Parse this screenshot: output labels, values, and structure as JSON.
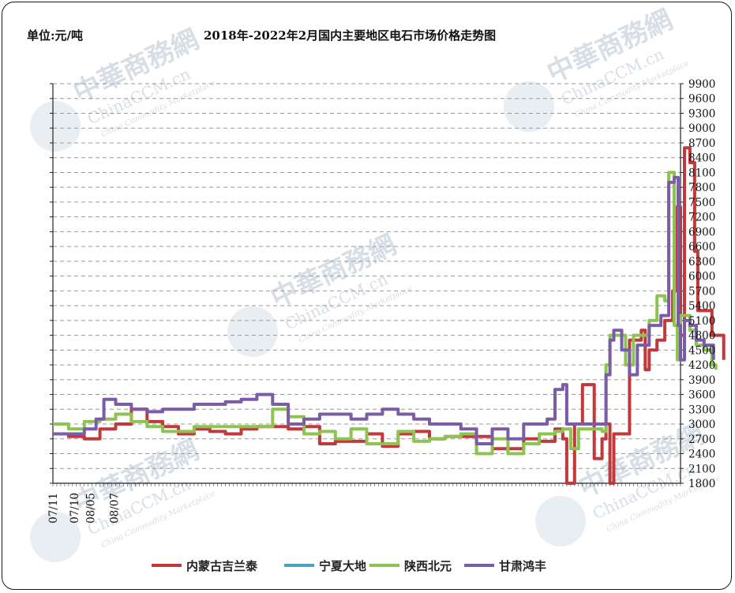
{
  "unit_label": "单位:元/吨",
  "watermark": {
    "brand_cn": "中華商務網",
    "brand_en": "ChinaCCM.cn",
    "tagline": "China Commodity Marketplace",
    "icon": "globe-icon"
  },
  "chart_data": {
    "type": "line",
    "title": "2018年-2022年2月国内主要地区电石市场价格走势图",
    "xlabel": "",
    "ylabel": "",
    "y_axis_side": "right",
    "ylim": [
      1800,
      9900
    ],
    "yticks": [
      1800,
      2100,
      2400,
      2700,
      3000,
      3300,
      3600,
      3900,
      4200,
      4500,
      4800,
      5100,
      5400,
      5700,
      6000,
      6300,
      6600,
      6900,
      7200,
      7500,
      7800,
      8100,
      8400,
      8700,
      9000,
      9300,
      9600,
      9900
    ],
    "x_tick_labels": [
      "07/11",
      "07/10",
      "08/05",
      "08/07"
    ],
    "x_tick_positions": [
      0,
      27,
      48,
      78
    ],
    "x_count": 800,
    "grid": "horizontal dashed",
    "legend_position": "bottom",
    "series": [
      {
        "name": "内蒙古吉兰泰",
        "color": "#c0393b",
        "points": [
          [
            0,
            2800
          ],
          [
            20,
            2750
          ],
          [
            40,
            2700
          ],
          [
            60,
            2900
          ],
          [
            80,
            3000
          ],
          [
            100,
            3300
          ],
          [
            120,
            3050
          ],
          [
            140,
            2950
          ],
          [
            160,
            2800
          ],
          [
            180,
            2900
          ],
          [
            200,
            2850
          ],
          [
            220,
            2800
          ],
          [
            240,
            2900
          ],
          [
            260,
            2950
          ],
          [
            280,
            2950
          ],
          [
            300,
            2900
          ],
          [
            320,
            2950
          ],
          [
            340,
            2600
          ],
          [
            360,
            2650
          ],
          [
            380,
            2650
          ],
          [
            400,
            2800
          ],
          [
            420,
            2550
          ],
          [
            440,
            2800
          ],
          [
            460,
            2850
          ],
          [
            480,
            2700
          ],
          [
            500,
            2750
          ],
          [
            520,
            2750
          ],
          [
            540,
            2750
          ],
          [
            560,
            2500
          ],
          [
            580,
            2500
          ],
          [
            600,
            2700
          ],
          [
            620,
            2650
          ],
          [
            640,
            2900
          ],
          [
            650,
            2700
          ],
          [
            655,
            1800
          ],
          [
            665,
            3000
          ],
          [
            675,
            3800
          ],
          [
            685,
            3800
          ],
          [
            690,
            2300
          ],
          [
            700,
            2700
          ],
          [
            705,
            3000
          ],
          [
            710,
            1800
          ],
          [
            715,
            2800
          ],
          [
            725,
            2800
          ],
          [
            730,
            2800
          ],
          [
            735,
            4700
          ],
          [
            745,
            4700
          ],
          [
            750,
            4900
          ],
          [
            755,
            4100
          ],
          [
            760,
            4500
          ],
          [
            770,
            4700
          ],
          [
            780,
            5100
          ],
          [
            790,
            5700
          ],
          [
            795,
            7400
          ],
          [
            800,
            4800
          ],
          [
            805,
            8600
          ],
          [
            812,
            8300
          ],
          [
            818,
            6500
          ],
          [
            822,
            5300
          ],
          [
            830,
            5300
          ],
          [
            840,
            4800
          ],
          [
            855,
            4300
          ]
        ]
      },
      {
        "name": "宁夏大地",
        "color": "#4aa3c7",
        "points": []
      },
      {
        "name": "陕西北元",
        "color": "#8dc451",
        "points": [
          [
            0,
            3000
          ],
          [
            20,
            2900
          ],
          [
            40,
            3050
          ],
          [
            60,
            3100
          ],
          [
            80,
            3200
          ],
          [
            100,
            3050
          ],
          [
            120,
            2950
          ],
          [
            140,
            2850
          ],
          [
            160,
            2850
          ],
          [
            180,
            2950
          ],
          [
            200,
            2950
          ],
          [
            220,
            2950
          ],
          [
            240,
            2950
          ],
          [
            260,
            2950
          ],
          [
            280,
            3300
          ],
          [
            300,
            3150
          ],
          [
            320,
            2800
          ],
          [
            340,
            2850
          ],
          [
            360,
            2700
          ],
          [
            380,
            2900
          ],
          [
            400,
            2600
          ],
          [
            420,
            2600
          ],
          [
            440,
            2850
          ],
          [
            460,
            2650
          ],
          [
            480,
            2700
          ],
          [
            500,
            2750
          ],
          [
            520,
            2800
          ],
          [
            540,
            2400
          ],
          [
            560,
            2700
          ],
          [
            580,
            2400
          ],
          [
            600,
            2600
          ],
          [
            620,
            2800
          ],
          [
            640,
            2850
          ],
          [
            650,
            2900
          ],
          [
            660,
            2500
          ],
          [
            670,
            2900
          ],
          [
            680,
            2900
          ],
          [
            690,
            2900
          ],
          [
            700,
            2850
          ],
          [
            705,
            4200
          ],
          [
            710,
            4800
          ],
          [
            720,
            4800
          ],
          [
            730,
            4200
          ],
          [
            740,
            4800
          ],
          [
            760,
            5100
          ],
          [
            770,
            5600
          ],
          [
            780,
            5500
          ],
          [
            785,
            8100
          ],
          [
            792,
            5000
          ],
          [
            796,
            4300
          ],
          [
            800,
            5200
          ],
          [
            806,
            5200
          ],
          [
            812,
            4900
          ],
          [
            820,
            4600
          ],
          [
            830,
            4500
          ],
          [
            840,
            4200
          ],
          [
            845,
            4100
          ]
        ]
      },
      {
        "name": "甘肃鸿丰",
        "color": "#7b5ca8",
        "points": [
          [
            0,
            2800
          ],
          [
            20,
            2800
          ],
          [
            40,
            2900
          ],
          [
            55,
            3100
          ],
          [
            65,
            3500
          ],
          [
            80,
            3400
          ],
          [
            100,
            3300
          ],
          [
            120,
            3250
          ],
          [
            140,
            3300
          ],
          [
            160,
            3300
          ],
          [
            180,
            3400
          ],
          [
            200,
            3400
          ],
          [
            220,
            3450
          ],
          [
            240,
            3500
          ],
          [
            260,
            3600
          ],
          [
            280,
            3400
          ],
          [
            300,
            3000
          ],
          [
            320,
            3100
          ],
          [
            340,
            3200
          ],
          [
            360,
            3200
          ],
          [
            380,
            3100
          ],
          [
            400,
            3200
          ],
          [
            420,
            3300
          ],
          [
            440,
            3200
          ],
          [
            460,
            3100
          ],
          [
            480,
            3000
          ],
          [
            500,
            3000
          ],
          [
            520,
            2900
          ],
          [
            540,
            2600
          ],
          [
            560,
            2900
          ],
          [
            580,
            2700
          ],
          [
            600,
            3000
          ],
          [
            620,
            3000
          ],
          [
            630,
            3100
          ],
          [
            640,
            3700
          ],
          [
            650,
            3800
          ],
          [
            655,
            3000
          ],
          [
            665,
            3000
          ],
          [
            685,
            3000
          ],
          [
            695,
            3000
          ],
          [
            705,
            4000
          ],
          [
            710,
            4700
          ],
          [
            715,
            4900
          ],
          [
            725,
            4500
          ],
          [
            735,
            4000
          ],
          [
            745,
            4600
          ],
          [
            760,
            5000
          ],
          [
            775,
            5200
          ],
          [
            785,
            7900
          ],
          [
            792,
            8000
          ],
          [
            797,
            5000
          ],
          [
            800,
            4300
          ],
          [
            805,
            5100
          ],
          [
            812,
            5000
          ],
          [
            820,
            4700
          ],
          [
            830,
            4600
          ],
          [
            842,
            4300
          ]
        ]
      }
    ]
  }
}
